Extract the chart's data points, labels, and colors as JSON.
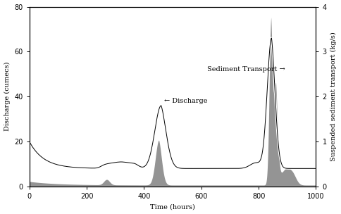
{
  "title": "",
  "xlabel": "Time (hours)",
  "ylabel_left": "Discharge (cumecs)",
  "ylabel_right": "Suspended sediment transport (kg/s)",
  "xlim": [
    0,
    1000
  ],
  "ylim_left": [
    0,
    80
  ],
  "ylim_right": [
    0,
    4
  ],
  "xticks": [
    0,
    200,
    400,
    600,
    800,
    1000
  ],
  "yticks_left": [
    0,
    20,
    40,
    60,
    80
  ],
  "yticks_right": [
    0,
    1,
    2,
    3,
    4
  ],
  "sediment_fill_color": "#888888",
  "bg_color": "white",
  "annotation_discharge": "← Discharge",
  "annotation_sediment": "Sediment Transport →",
  "ann_discharge_x": 470,
  "ann_discharge_y": 38,
  "ann_sediment_x": 620,
  "ann_sediment_y": 52
}
